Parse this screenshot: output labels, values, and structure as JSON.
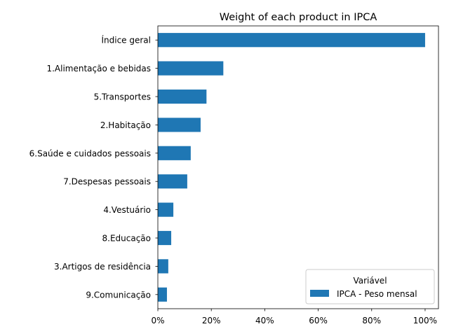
{
  "chart_data": {
    "type": "bar",
    "orientation": "horizontal",
    "title": "Weight of each product in IPCA",
    "xlabel": "",
    "ylabel": "",
    "xlim": [
      0,
      105
    ],
    "x_ticks": [
      "0%",
      "20%",
      "40%",
      "60%",
      "80%",
      "100%"
    ],
    "grid": false,
    "categories": [
      "Índice geral",
      "1.Alimentação e bebidas",
      "5.Transportes",
      "2.Habitação",
      "6.Saúde e cuidados pessoais",
      "7.Despesas pessoais",
      "4.Vestuário",
      "8.Educação",
      "3.Artigos de residência",
      "9.Comunicação"
    ],
    "series": [
      {
        "name": "IPCA - Peso mensal",
        "color": "#1f77b4",
        "values": [
          100,
          24.5,
          18.2,
          16.0,
          12.3,
          11.0,
          5.8,
          5.0,
          3.9,
          3.4
        ]
      }
    ],
    "legend": {
      "title": "Variável",
      "placement": "lower-right"
    }
  }
}
